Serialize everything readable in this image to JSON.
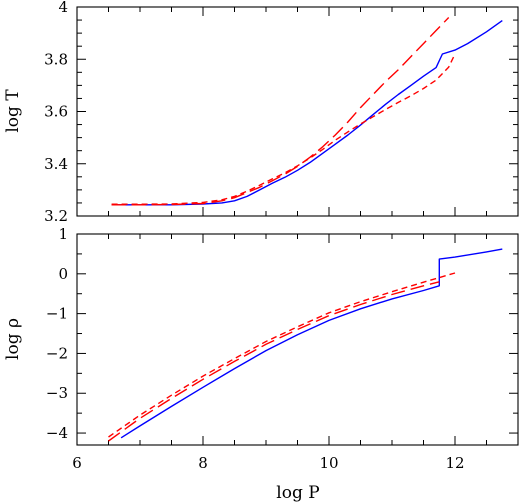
{
  "chart_data": [
    {
      "type": "line",
      "id": "top",
      "xlabel": "",
      "ylabel": "log T",
      "xlim": [
        6,
        13
      ],
      "ylim": [
        3.2,
        4.0
      ],
      "xticks_major": [
        6,
        8,
        10,
        12
      ],
      "xticks_minor": [
        6.5,
        7,
        7.5,
        8.5,
        9,
        9.5,
        10.5,
        11,
        11.5,
        12.5
      ],
      "yticks_major": [
        3.2,
        3.4,
        3.6,
        3.8,
        4.0
      ],
      "ytick_labels": [
        "3.2",
        "3.4",
        "3.6",
        "3.8",
        "4"
      ],
      "yticks_minor": [
        3.25,
        3.3,
        3.35,
        3.45,
        3.5,
        3.55,
        3.65,
        3.7,
        3.75,
        3.85,
        3.9,
        3.95
      ],
      "show_x_tick_labels": false,
      "series": [
        {
          "color": "#0000ff",
          "dash": "solid",
          "x": [
            6.55,
            7.0,
            7.5,
            8.0,
            8.3,
            8.5,
            8.7,
            8.9,
            9.1,
            9.3,
            9.5,
            9.7,
            9.9,
            10.1,
            10.3,
            10.5,
            10.7,
            10.9,
            11.1,
            11.3,
            11.5,
            11.7,
            11.8,
            12.0,
            12.2,
            12.5,
            12.75
          ],
          "y": [
            3.243,
            3.243,
            3.243,
            3.246,
            3.25,
            3.258,
            3.275,
            3.3,
            3.325,
            3.348,
            3.375,
            3.405,
            3.44,
            3.475,
            3.51,
            3.548,
            3.588,
            3.628,
            3.665,
            3.7,
            3.735,
            3.768,
            3.82,
            3.835,
            3.86,
            3.905,
            3.948
          ]
        },
        {
          "color": "#ff0000",
          "dash": "long-dash",
          "x": [
            6.55,
            7.0,
            7.5,
            8.0,
            8.3,
            8.5,
            8.7,
            8.9,
            9.1,
            9.3,
            9.5,
            9.7,
            9.9,
            10.1,
            10.3,
            10.5,
            10.7,
            10.9,
            11.1,
            11.3,
            11.5,
            11.7,
            11.9
          ],
          "y": [
            3.243,
            3.243,
            3.244,
            3.248,
            3.258,
            3.27,
            3.29,
            3.31,
            3.335,
            3.36,
            3.39,
            3.425,
            3.465,
            3.51,
            3.56,
            3.615,
            3.665,
            3.715,
            3.76,
            3.81,
            3.86,
            3.91,
            3.96
          ]
        },
        {
          "color": "#ff0000",
          "dash": "short-dash",
          "x": [
            6.55,
            7.0,
            7.5,
            8.0,
            8.3,
            8.5,
            8.7,
            8.9,
            9.1,
            9.3,
            9.5,
            9.7,
            9.9,
            10.1,
            10.3,
            10.5,
            10.7,
            10.9,
            11.1,
            11.3,
            11.5,
            11.7,
            11.9,
            12.0
          ],
          "y": [
            3.245,
            3.245,
            3.246,
            3.252,
            3.262,
            3.275,
            3.295,
            3.318,
            3.342,
            3.365,
            3.392,
            3.422,
            3.455,
            3.49,
            3.522,
            3.552,
            3.58,
            3.608,
            3.635,
            3.66,
            3.688,
            3.72,
            3.77,
            3.82
          ]
        }
      ]
    },
    {
      "type": "line",
      "id": "bottom",
      "xlabel": "log P",
      "ylabel": "log ρ",
      "xlim": [
        6,
        13
      ],
      "ylim": [
        -4.3,
        1.0
      ],
      "xticks_major": [
        6,
        8,
        10,
        12
      ],
      "xtick_labels": [
        "6",
        "8",
        "10",
        "12"
      ],
      "xticks_minor": [
        6.5,
        7,
        7.5,
        8.5,
        9,
        9.5,
        10.5,
        11,
        11.5,
        12.5
      ],
      "yticks_major": [
        -4,
        -3,
        -2,
        -1,
        0,
        1
      ],
      "ytick_labels": [
        "−4",
        "−3",
        "−2",
        "−1",
        "0",
        "1"
      ],
      "yticks_minor": [
        -3.5,
        -2.5,
        -1.5,
        -0.5,
        0.5
      ],
      "show_x_tick_labels": true,
      "series": [
        {
          "color": "#0000ff",
          "dash": "solid",
          "x": [
            6.7,
            7.0,
            7.5,
            8.0,
            8.5,
            9.0,
            9.5,
            10.0,
            10.5,
            11.0,
            11.5,
            11.75,
            11.75,
            12.0,
            12.5,
            12.75
          ],
          "y": [
            -4.12,
            -3.82,
            -3.33,
            -2.85,
            -2.38,
            -1.93,
            -1.53,
            -1.17,
            -0.88,
            -0.63,
            -0.42,
            -0.3,
            0.37,
            0.42,
            0.55,
            0.62
          ]
        },
        {
          "color": "#ff0000",
          "dash": "long-dash",
          "x": [
            6.5,
            7.0,
            7.5,
            8.0,
            8.5,
            9.0,
            9.5,
            10.0,
            10.5,
            11.0,
            11.5,
            11.75
          ],
          "y": [
            -4.2,
            -3.63,
            -3.13,
            -2.65,
            -2.2,
            -1.77,
            -1.4,
            -1.05,
            -0.77,
            -0.52,
            -0.3,
            -0.2
          ]
        },
        {
          "color": "#ff0000",
          "dash": "short-dash",
          "x": [
            6.5,
            7.0,
            7.5,
            8.0,
            8.5,
            9.0,
            9.5,
            10.0,
            10.5,
            11.0,
            11.5,
            12.0
          ],
          "y": [
            -4.1,
            -3.55,
            -3.05,
            -2.57,
            -2.13,
            -1.7,
            -1.33,
            -0.98,
            -0.7,
            -0.45,
            -0.21,
            0.02
          ]
        }
      ]
    }
  ]
}
